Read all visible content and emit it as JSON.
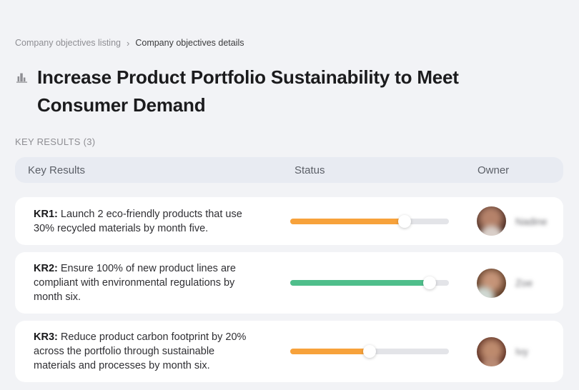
{
  "breadcrumb": {
    "separator": "›",
    "items": [
      {
        "label": "Company objectives listing"
      },
      {
        "label": "Company objectives details"
      }
    ]
  },
  "header": {
    "icon": "buildings-icon",
    "title": "Increase Product Portfolio Sustainability to Meet Consumer Demand"
  },
  "section": {
    "label": "KEY RESULTS (3)"
  },
  "table": {
    "columns": {
      "kr": "Key Results",
      "status": "Status",
      "owner": "Owner"
    },
    "rows": [
      {
        "kr_label": "KR1:",
        "description": "Launch 2 eco-friendly products that use 30% recycled materials by month five.",
        "progress_percent": 72,
        "progress_color": "#F7A23B",
        "owner_name": "Nadine"
      },
      {
        "kr_label": "KR2:",
        "description": "Ensure 100% of new product lines are compliant with environmental regulations by month six.",
        "progress_percent": 88,
        "progress_color": "#4FBE8B",
        "owner_name": "Zoe"
      },
      {
        "kr_label": "KR3:",
        "description": "Reduce product carbon footprint by 20% across the portfolio through sustainable materials and processes by month six.",
        "progress_percent": 50,
        "progress_color": "#F7A23B",
        "owner_name": "Ivy"
      }
    ]
  },
  "colors": {
    "page_background": "#F2F3F6",
    "card_background": "#FFFFFF",
    "table_header_background": "#E8EBF2",
    "track_gray": "#E3E4E8",
    "orange": "#F7A23B",
    "green": "#4FBE8B"
  }
}
